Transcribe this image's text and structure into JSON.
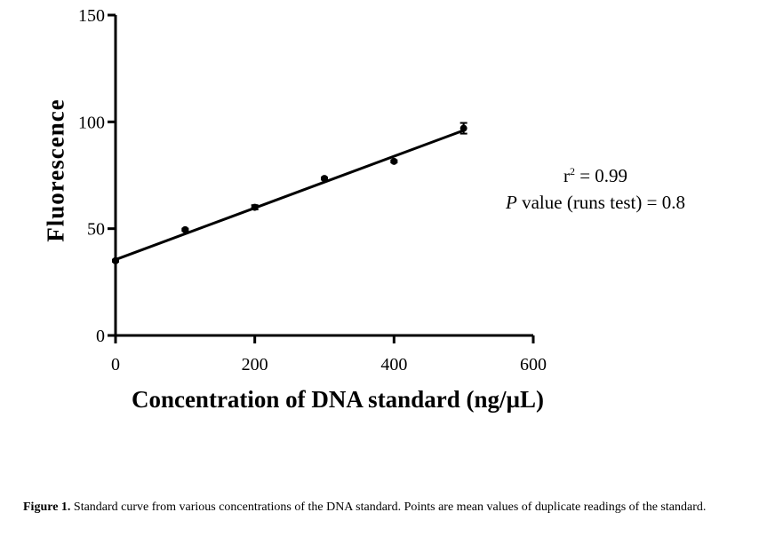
{
  "chart_data": {
    "type": "scatter",
    "xlabel": "Concentration of DNA standard (ng/µL)",
    "ylabel": "Fluorescence",
    "xlim": [
      0,
      600
    ],
    "ylim": [
      0,
      150
    ],
    "xticks": [
      0,
      200,
      400,
      600
    ],
    "yticks": [
      0,
      50,
      100,
      150
    ],
    "grid": false,
    "points": [
      {
        "x": 0,
        "y": 35,
        "err": 0.5
      },
      {
        "x": 100,
        "y": 49.5,
        "err": 0.5
      },
      {
        "x": 200,
        "y": 60,
        "err": 1
      },
      {
        "x": 300,
        "y": 73.5,
        "err": 0.5
      },
      {
        "x": 400,
        "y": 81.5,
        "err": 0.5
      },
      {
        "x": 500,
        "y": 97,
        "err": 2.5
      }
    ],
    "fit_line": {
      "x": [
        0,
        500
      ],
      "y": [
        35.5,
        96
      ]
    },
    "annotation": {
      "r2_prefix": "r",
      "r2_sup": "2",
      "r2_value": " = 0.99",
      "p_label": "P",
      "p_text": " value (runs test) = 0.8"
    }
  },
  "caption": {
    "label": "Figure 1.",
    "text": " Standard curve from various concentrations of the DNA standard. Points are mean values of duplicate readings of the standard."
  }
}
